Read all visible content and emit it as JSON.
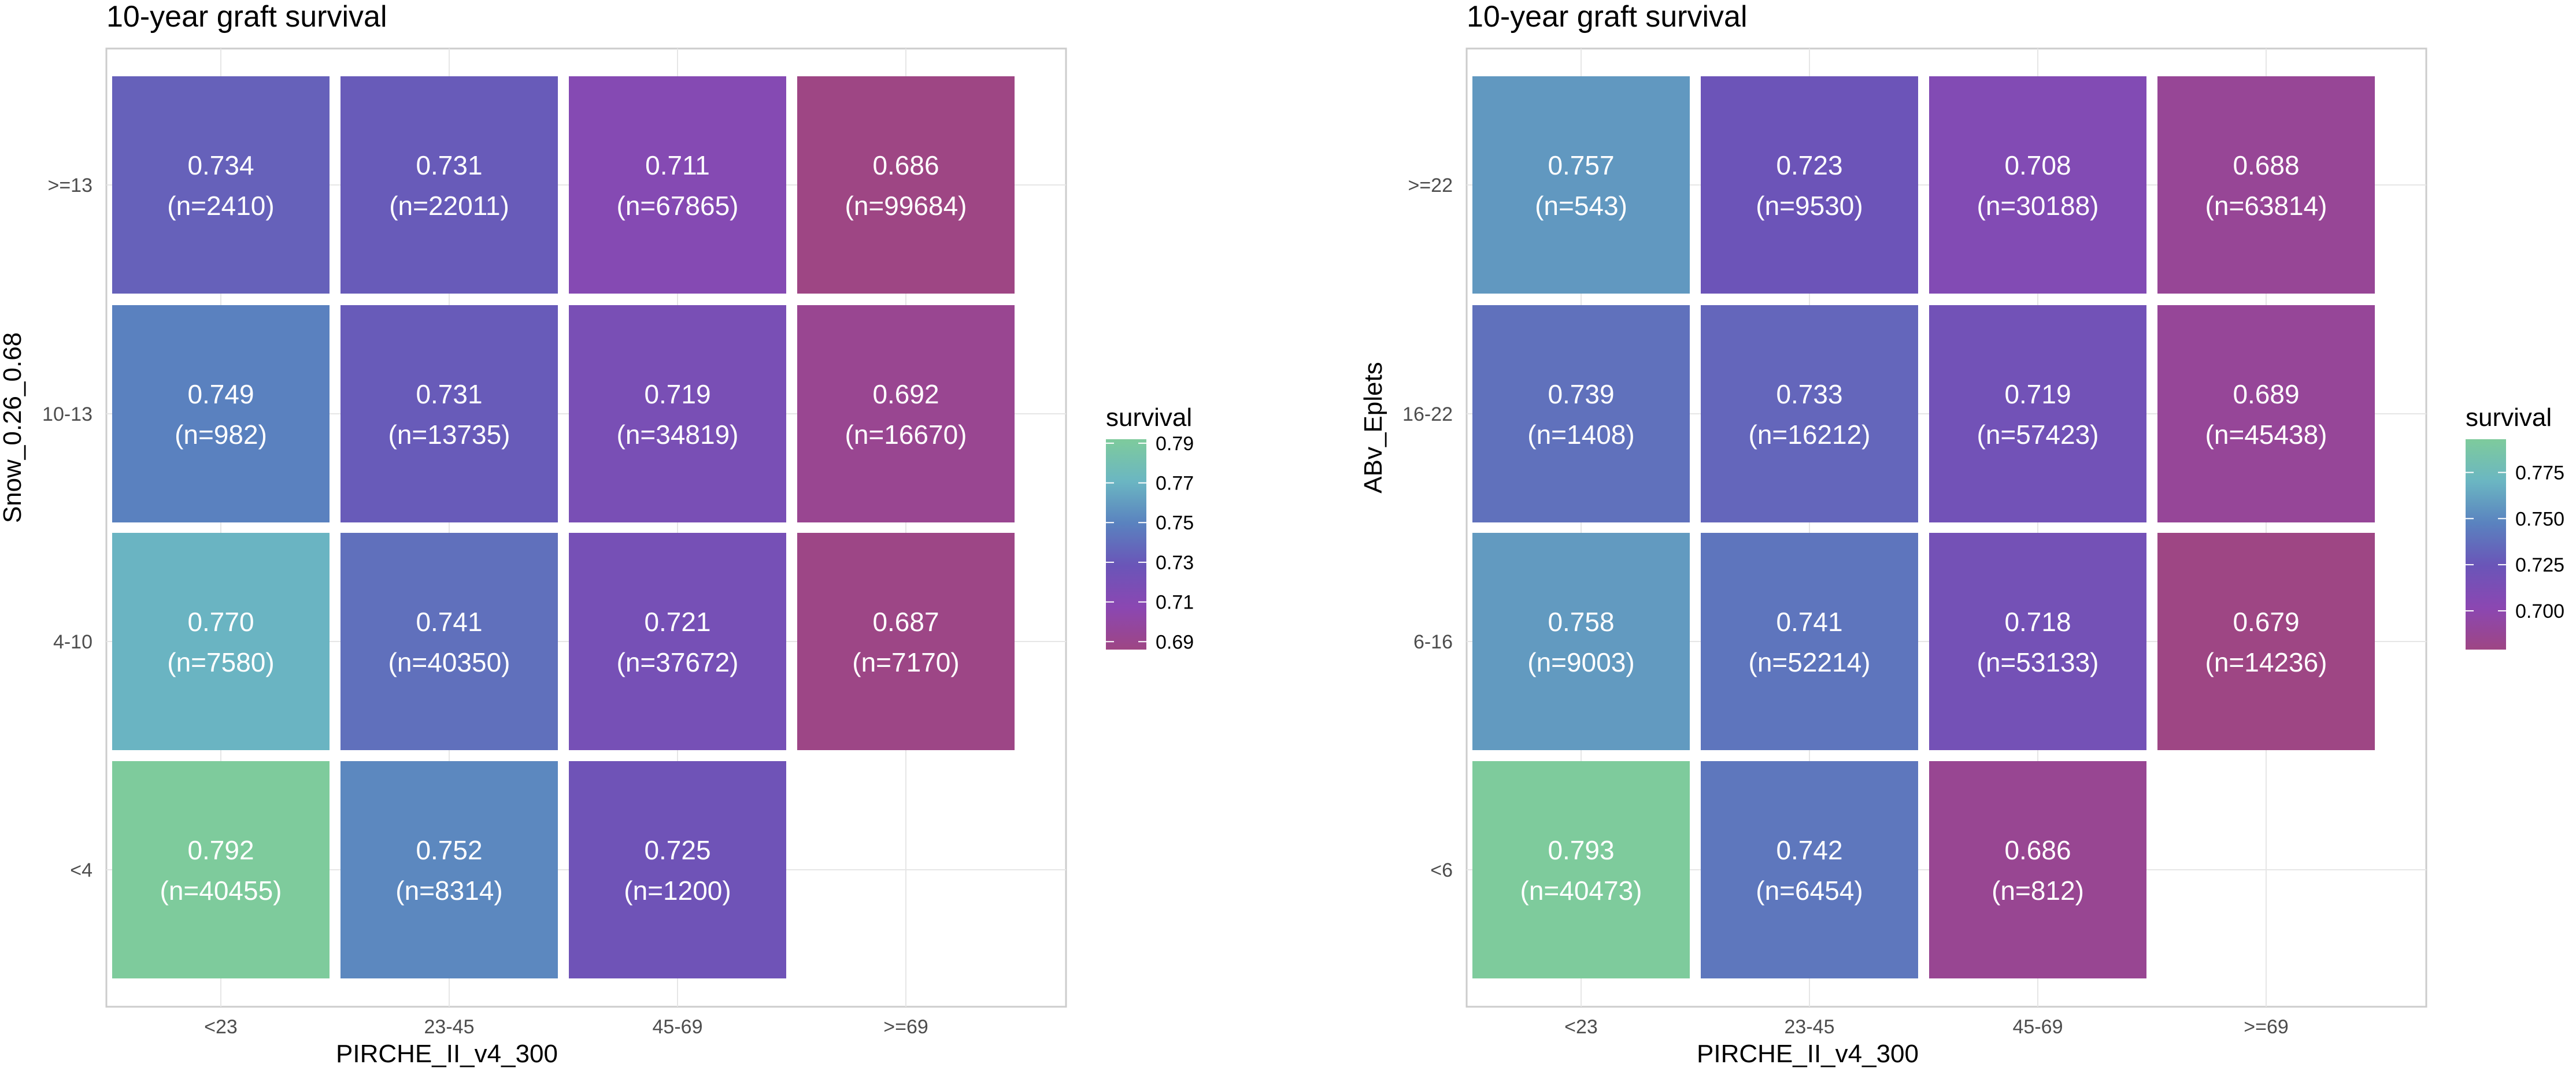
{
  "chart_data": [
    {
      "type": "heatmap",
      "title": "10-year graft survival",
      "xlabel": "PIRCHE_II_v4_300",
      "ylabel": "Snow_0.26_0.68",
      "x_categories": [
        "<23",
        "23-45",
        "45-69",
        ">=69"
      ],
      "y_categories": [
        "<4",
        "4-10",
        "10-13",
        ">=13"
      ],
      "cells": [
        {
          "x": "<23",
          "y": ">=13",
          "value": 0.734,
          "label": "0.734",
          "n_label": "(n=2410)"
        },
        {
          "x": "23-45",
          "y": ">=13",
          "value": 0.731,
          "label": "0.731",
          "n_label": "(n=22011)"
        },
        {
          "x": "45-69",
          "y": ">=13",
          "value": 0.711,
          "label": "0.711",
          "n_label": "(n=67865)"
        },
        {
          "x": ">=69",
          "y": ">=13",
          "value": 0.686,
          "label": "0.686",
          "n_label": "(n=99684)"
        },
        {
          "x": "<23",
          "y": "10-13",
          "value": 0.749,
          "label": "0.749",
          "n_label": "(n=982)"
        },
        {
          "x": "23-45",
          "y": "10-13",
          "value": 0.731,
          "label": "0.731",
          "n_label": "(n=13735)"
        },
        {
          "x": "45-69",
          "y": "10-13",
          "value": 0.719,
          "label": "0.719",
          "n_label": "(n=34819)"
        },
        {
          "x": ">=69",
          "y": "10-13",
          "value": 0.692,
          "label": "0.692",
          "n_label": "(n=16670)"
        },
        {
          "x": "<23",
          "y": "4-10",
          "value": 0.77,
          "label": "0.770",
          "n_label": "(n=7580)"
        },
        {
          "x": "23-45",
          "y": "4-10",
          "value": 0.741,
          "label": "0.741",
          "n_label": "(n=40350)"
        },
        {
          "x": "45-69",
          "y": "4-10",
          "value": 0.721,
          "label": "0.721",
          "n_label": "(n=37672)"
        },
        {
          "x": ">=69",
          "y": "4-10",
          "value": 0.687,
          "label": "0.687",
          "n_label": "(n=7170)"
        },
        {
          "x": "<23",
          "y": "<4",
          "value": 0.792,
          "label": "0.792",
          "n_label": "(n=40455)"
        },
        {
          "x": "23-45",
          "y": "<4",
          "value": 0.752,
          "label": "0.752",
          "n_label": "(n=8314)"
        },
        {
          "x": "45-69",
          "y": "<4",
          "value": 0.725,
          "label": "0.725",
          "n_label": "(n=1200)"
        }
      ],
      "legend": {
        "title": "survival",
        "position": "right",
        "ticks": [
          "0.79",
          "0.77",
          "0.75",
          "0.73",
          "0.71",
          "0.69"
        ],
        "tick_values": [
          0.79,
          0.77,
          0.75,
          0.73,
          0.71,
          0.69
        ],
        "range": [
          0.686,
          0.792
        ]
      },
      "grid": true
    },
    {
      "type": "heatmap",
      "title": "10-year graft survival",
      "xlabel": "PIRCHE_II_v4_300",
      "ylabel": "ABv_Eplets",
      "x_categories": [
        "<23",
        "23-45",
        "45-69",
        ">=69"
      ],
      "y_categories": [
        "<6",
        "6-16",
        "16-22",
        ">=22"
      ],
      "cells": [
        {
          "x": "<23",
          "y": ">=22",
          "value": 0.757,
          "label": "0.757",
          "n_label": "(n=543)"
        },
        {
          "x": "23-45",
          "y": ">=22",
          "value": 0.723,
          "label": "0.723",
          "n_label": "(n=9530)"
        },
        {
          "x": "45-69",
          "y": ">=22",
          "value": 0.708,
          "label": "0.708",
          "n_label": "(n=30188)"
        },
        {
          "x": ">=69",
          "y": ">=22",
          "value": 0.688,
          "label": "0.688",
          "n_label": "(n=63814)"
        },
        {
          "x": "<23",
          "y": "16-22",
          "value": 0.739,
          "label": "0.739",
          "n_label": "(n=1408)"
        },
        {
          "x": "23-45",
          "y": "16-22",
          "value": 0.733,
          "label": "0.733",
          "n_label": "(n=16212)"
        },
        {
          "x": "45-69",
          "y": "16-22",
          "value": 0.719,
          "label": "0.719",
          "n_label": "(n=57423)"
        },
        {
          "x": ">=69",
          "y": "16-22",
          "value": 0.689,
          "label": "0.689",
          "n_label": "(n=45438)"
        },
        {
          "x": "<23",
          "y": "6-16",
          "value": 0.758,
          "label": "0.758",
          "n_label": "(n=9003)"
        },
        {
          "x": "23-45",
          "y": "6-16",
          "value": 0.741,
          "label": "0.741",
          "n_label": "(n=52214)"
        },
        {
          "x": "45-69",
          "y": "6-16",
          "value": 0.718,
          "label": "0.718",
          "n_label": "(n=53133)"
        },
        {
          "x": ">=69",
          "y": "6-16",
          "value": 0.679,
          "label": "0.679",
          "n_label": "(n=14236)"
        },
        {
          "x": "<23",
          "y": "<6",
          "value": 0.793,
          "label": "0.793",
          "n_label": "(n=40473)"
        },
        {
          "x": "23-45",
          "y": "<6",
          "value": 0.742,
          "label": "0.742",
          "n_label": "(n=6454)"
        },
        {
          "x": "45-69",
          "y": "<6",
          "value": 0.686,
          "label": "0.686",
          "n_label": "(n=812)"
        }
      ],
      "legend": {
        "title": "survival",
        "position": "right",
        "ticks": [
          "0.775",
          "0.750",
          "0.725",
          "0.700"
        ],
        "tick_values": [
          0.775,
          0.75,
          0.725,
          0.7
        ],
        "range": [
          0.679,
          0.793
        ]
      },
      "grid": true
    }
  ],
  "colors": {
    "scale": [
      "#7ecb9c",
      "#6bb6c2",
      "#5a82bf",
      "#6a55b8",
      "#8b47b2",
      "#9e4684"
    ],
    "panel_border": "#cccccc",
    "grid": "#e6e6e6",
    "cell_text": "#ffffff",
    "axis_text": "#4d4d4d",
    "title_text": "#000000"
  }
}
